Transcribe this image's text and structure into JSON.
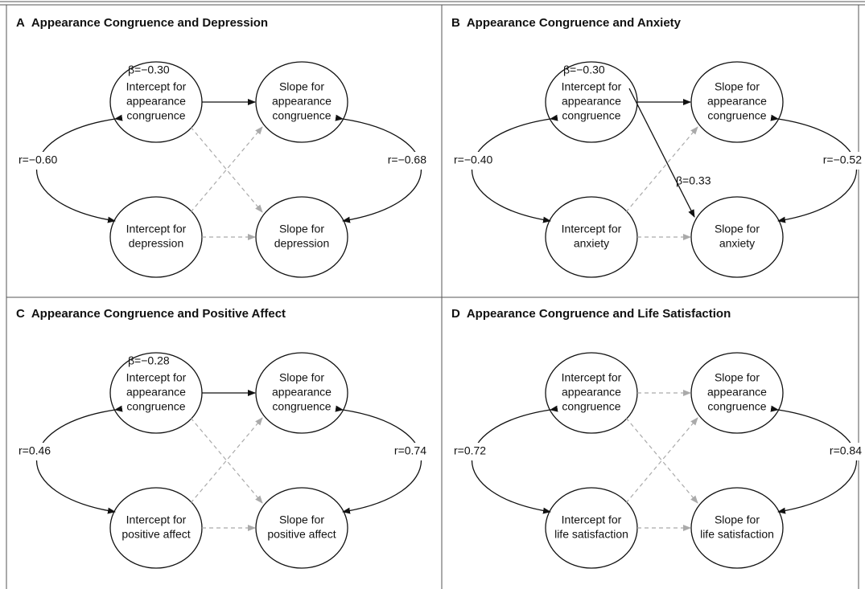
{
  "panels": [
    {
      "letter": "A",
      "title": "Appearance Congruence and Depression",
      "nodes": {
        "intercept_top": [
          "Intercept for",
          "appearance",
          "congruence"
        ],
        "slope_top": [
          "Slope for",
          "appearance",
          "congruence"
        ],
        "intercept_bottom": [
          "Intercept for",
          "depression"
        ],
        "slope_bottom": [
          "Slope for",
          "depression"
        ]
      },
      "r_left": "r=−0.60",
      "r_right": "r=−0.68",
      "beta_top": "β=−0.30"
    },
    {
      "letter": "B",
      "title": "Appearance Congruence and Anxiety",
      "nodes": {
        "intercept_top": [
          "Intercept for",
          "appearance",
          "congruence"
        ],
        "slope_top": [
          "Slope for",
          "appearance",
          "congruence"
        ],
        "intercept_bottom": [
          "Intercept for",
          "anxiety"
        ],
        "slope_bottom": [
          "Slope for",
          "anxiety"
        ]
      },
      "r_left": "r=−0.40",
      "r_right": "r=−0.52",
      "beta_top": "β=−0.30",
      "beta_cross": "β=0.33"
    },
    {
      "letter": "C",
      "title": "Appearance Congruence and Positive Affect",
      "nodes": {
        "intercept_top": [
          "Intercept for",
          "appearance",
          "congruence"
        ],
        "slope_top": [
          "Slope for",
          "appearance",
          "congruence"
        ],
        "intercept_bottom": [
          "Intercept for",
          "positive affect"
        ],
        "slope_bottom": [
          "Slope for",
          "positive affect"
        ]
      },
      "r_left": "r=0.46",
      "r_right": "r=0.74",
      "beta_top": "β=−0.28"
    },
    {
      "letter": "D",
      "title": "Appearance Congruence and Life Satisfaction",
      "nodes": {
        "intercept_top": [
          "Intercept for",
          "appearance",
          "congruence"
        ],
        "slope_top": [
          "Slope for",
          "appearance",
          "congruence"
        ],
        "intercept_bottom": [
          "Intercept for",
          "life satisfaction"
        ],
        "slope_bottom": [
          "Slope for",
          "life satisfaction"
        ]
      },
      "r_left": "r=0.72",
      "r_right": "r=0.84"
    }
  ]
}
